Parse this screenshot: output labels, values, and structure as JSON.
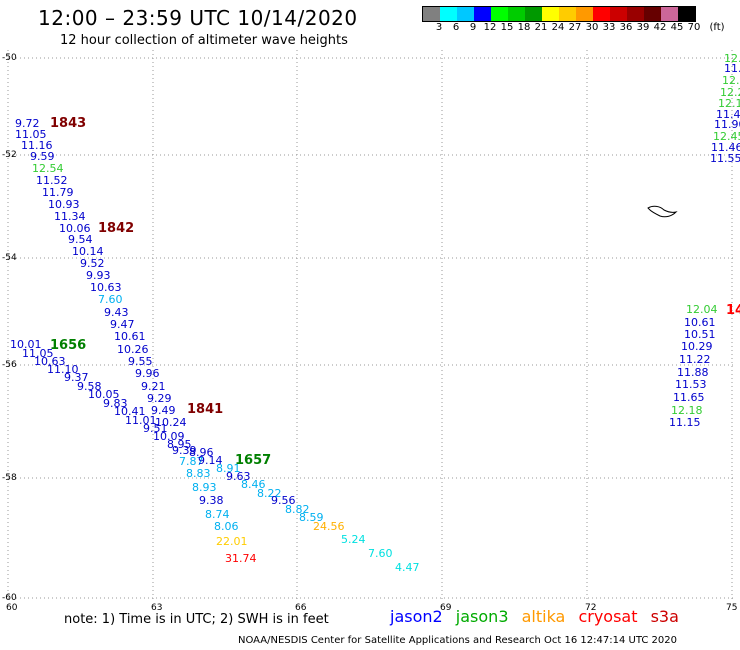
{
  "header": {
    "title": "12:00 – 23:59 UTC 10/14/2020",
    "subtitle": "12 hour collection of altimeter wave heights"
  },
  "colorbar": {
    "colors": [
      "#808080",
      "#00ffff",
      "#00c8ff",
      "#0000ff",
      "#00ff00",
      "#00cc00",
      "#009900",
      "#ffff00",
      "#ffcc00",
      "#ff9900",
      "#ff0000",
      "#cc0000",
      "#990000",
      "#660000",
      "#cc6699",
      "#000000"
    ],
    "labels": [
      "3",
      "6",
      "9",
      "12",
      "15",
      "18",
      "21",
      "24",
      "27",
      "30",
      "33",
      "36",
      "39",
      "42",
      "45",
      "70",
      "(ft)"
    ]
  },
  "axes": {
    "lon_labels": [
      "60",
      "63",
      "66",
      "69",
      "72",
      "75"
    ],
    "lat_labels": [
      "-50",
      "-52",
      "-54",
      "-56",
      "-58",
      "-60"
    ]
  },
  "observations": [
    {
      "t": "9.72",
      "c": "#0000cc"
    },
    {
      "t": "11.05",
      "c": "#0000cc"
    },
    {
      "t": "11.16",
      "c": "#0000cc"
    },
    {
      "t": "9.59",
      "c": "#0000cc"
    },
    {
      "t": "12.54",
      "c": "#33cc33"
    },
    {
      "t": "11.52",
      "c": "#0000cc"
    },
    {
      "t": "11.79",
      "c": "#0000cc"
    },
    {
      "t": "10.93",
      "c": "#0000cc"
    },
    {
      "t": "11.34",
      "c": "#0000cc"
    },
    {
      "t": "10.06",
      "c": "#0000cc"
    },
    {
      "t": "9.54",
      "c": "#0000cc"
    },
    {
      "t": "10.14",
      "c": "#0000cc"
    },
    {
      "t": "9.52",
      "c": "#0000cc"
    },
    {
      "t": "9.93",
      "c": "#0000cc"
    },
    {
      "t": "10.63",
      "c": "#0000cc"
    },
    {
      "t": "7.60",
      "c": "#00b0f0"
    },
    {
      "t": "9.43",
      "c": "#0000cc"
    },
    {
      "t": "9.47",
      "c": "#0000cc"
    },
    {
      "t": "10.61",
      "c": "#0000cc"
    },
    {
      "t": "10.26",
      "c": "#0000cc"
    },
    {
      "t": "9.55",
      "c": "#0000cc"
    },
    {
      "t": "9.96",
      "c": "#0000cc"
    },
    {
      "t": "9.21",
      "c": "#0000cc"
    },
    {
      "t": "9.29",
      "c": "#0000cc"
    },
    {
      "t": "9.49",
      "c": "#0000cc"
    },
    {
      "t": "10.24",
      "c": "#0000cc"
    },
    {
      "t": "10.01",
      "c": "#0000cc"
    },
    {
      "t": "11.05",
      "c": "#0000cc"
    },
    {
      "t": "10.63",
      "c": "#0000cc"
    },
    {
      "t": "11.10",
      "c": "#0000cc"
    },
    {
      "t": "9.37",
      "c": "#0000cc"
    },
    {
      "t": "9.58",
      "c": "#0000cc"
    },
    {
      "t": "10.05",
      "c": "#0000cc"
    },
    {
      "t": "9.83",
      "c": "#0000cc"
    },
    {
      "t": "10.41",
      "c": "#0000cc"
    },
    {
      "t": "11.01",
      "c": "#0000cc"
    },
    {
      "t": "9.51",
      "c": "#0000cc"
    },
    {
      "t": "10.09",
      "c": "#0000cc"
    },
    {
      "t": "8.95",
      "c": "#0000cc"
    },
    {
      "t": "9.39",
      "c": "#0000cc"
    },
    {
      "t": "8.96",
      "c": "#0000cc"
    },
    {
      "t": "7.87",
      "c": "#00b0f0"
    },
    {
      "t": "9.14",
      "c": "#0000cc"
    },
    {
      "t": "8.91",
      "c": "#00b0f0"
    },
    {
      "t": "8.83",
      "c": "#00b0f0"
    },
    {
      "t": "9.63",
      "c": "#0000cc"
    },
    {
      "t": "8.93",
      "c": "#00b0f0"
    },
    {
      "t": "8.46",
      "c": "#00b0f0"
    },
    {
      "t": "8.22",
      "c": "#00b0f0"
    },
    {
      "t": "9.38",
      "c": "#0000cc"
    },
    {
      "t": "9.56",
      "c": "#0000cc"
    },
    {
      "t": "8.82",
      "c": "#00b0f0"
    },
    {
      "t": "8.74",
      "c": "#00b0f0"
    },
    {
      "t": "8.59",
      "c": "#00b0f0"
    },
    {
      "t": "8.06",
      "c": "#00b0f0"
    },
    {
      "t": "24.56",
      "c": "#ffb000"
    },
    {
      "t": "22.01",
      "c": "#ffcc00"
    },
    {
      "t": "5.24",
      "c": "#00e0e0"
    },
    {
      "t": "31.74",
      "c": "#ff0000"
    },
    {
      "t": "7.60",
      "c": "#00e0e0"
    },
    {
      "t": "4.47",
      "c": "#00e0e0"
    },
    {
      "t": "12.04",
      "c": "#33cc33"
    },
    {
      "t": "10.61",
      "c": "#0000cc"
    },
    {
      "t": "10.51",
      "c": "#0000cc"
    },
    {
      "t": "10.29",
      "c": "#0000cc"
    },
    {
      "t": "11.22",
      "c": "#0000cc"
    },
    {
      "t": "11.88",
      "c": "#0000cc"
    },
    {
      "t": "11.53",
      "c": "#0000cc"
    },
    {
      "t": "11.65",
      "c": "#0000cc"
    },
    {
      "t": "12.18",
      "c": "#33cc33"
    },
    {
      "t": "11.15",
      "c": "#0000cc"
    },
    {
      "t": "12.",
      "c": "#33cc33"
    },
    {
      "t": "11.",
      "c": "#0000cc"
    },
    {
      "t": "12.",
      "c": "#33cc33"
    },
    {
      "t": "12.2",
      "c": "#33cc33"
    },
    {
      "t": "12.1",
      "c": "#33cc33"
    },
    {
      "t": "11.4",
      "c": "#0000cc"
    },
    {
      "t": "11.90",
      "c": "#0000cc"
    },
    {
      "t": "12.45",
      "c": "#33cc33"
    },
    {
      "t": "11.46",
      "c": "#0000cc"
    },
    {
      "t": "11.55",
      "c": "#0000cc"
    }
  ],
  "pass_times": [
    {
      "t": "1843",
      "c": "#800000"
    },
    {
      "t": "1842",
      "c": "#800000"
    },
    {
      "t": "1656",
      "c": "#008000"
    },
    {
      "t": "1841",
      "c": "#800000"
    },
    {
      "t": "1657",
      "c": "#008000"
    },
    {
      "t": "14",
      "c": "#ff0000"
    }
  ],
  "footer": {
    "note": "note:  1) Time is in UTC; 2) SWH is in feet",
    "legend": [
      {
        "name": "jason2",
        "color": "#0000ff"
      },
      {
        "name": "jason3",
        "color": "#00aa00"
      },
      {
        "name": "altika",
        "color": "#ff9900"
      },
      {
        "name": "cryosat",
        "color": "#ff0000"
      },
      {
        "name": "s3a",
        "color": "#cc0000"
      }
    ],
    "credit": "NOAA/NESDIS Center for Satellite Applications and Research    Oct 16 12:47:14 UTC 2020"
  }
}
